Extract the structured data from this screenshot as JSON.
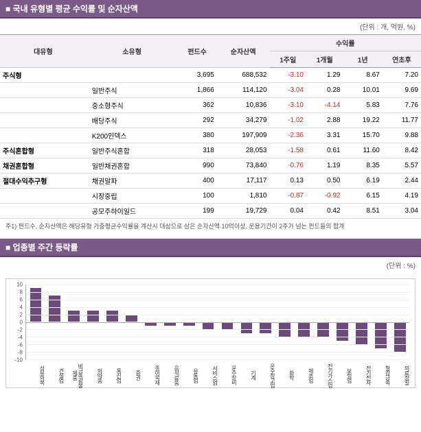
{
  "section1": {
    "title": "■ 국내 유형별 평균 수익률 및 순자산액",
    "unit": "(단위 : 개, 억원, %)",
    "headers": {
      "cat": "대유형",
      "sub": "소유형",
      "funds": "펀드수",
      "nav": "순자산액",
      "ret_group": "수익률",
      "w1": "1주일",
      "m1": "1개월",
      "y1": "1년",
      "ytd": "연초후"
    },
    "rows": [
      {
        "maj": true,
        "cat": "주식형",
        "sub": "",
        "funds": "3,695",
        "nav": "688,532",
        "w1": "-3.10",
        "w1n": true,
        "m1": "1.29",
        "m1n": false,
        "y1": "8.67",
        "ytd": "7.20"
      },
      {
        "maj": false,
        "cat": "",
        "sub": "일반주식",
        "funds": "1,866",
        "nav": "114,120",
        "w1": "-3.04",
        "w1n": true,
        "m1": "0.28",
        "m1n": false,
        "y1": "10.01",
        "ytd": "9.69"
      },
      {
        "maj": false,
        "cat": "",
        "sub": "중소형주식",
        "funds": "362",
        "nav": "10,836",
        "w1": "-3.10",
        "w1n": true,
        "m1": "-4.14",
        "m1n": true,
        "y1": "5.83",
        "ytd": "7.76"
      },
      {
        "maj": false,
        "cat": "",
        "sub": "배당주식",
        "funds": "292",
        "nav": "34,279",
        "w1": "-1.02",
        "w1n": true,
        "m1": "2.88",
        "m1n": false,
        "y1": "19.22",
        "ytd": "11.77"
      },
      {
        "maj": false,
        "cat": "",
        "sub": "K200인덱스",
        "funds": "380",
        "nav": "197,909",
        "w1": "-2.36",
        "w1n": true,
        "m1": "3.31",
        "m1n": false,
        "y1": "15.70",
        "ytd": "9.88"
      },
      {
        "maj": true,
        "cat": "주식혼합형",
        "sub": "일반주식혼합",
        "funds": "318",
        "nav": "28,053",
        "w1": "-1.58",
        "w1n": true,
        "m1": "0.61",
        "m1n": false,
        "y1": "11.60",
        "ytd": "8.42"
      },
      {
        "maj": true,
        "cat": "채권혼합형",
        "sub": "일반채권혼합",
        "funds": "990",
        "nav": "73,840",
        "w1": "-0.76",
        "w1n": true,
        "m1": "1.19",
        "m1n": false,
        "y1": "8.35",
        "ytd": "5.57"
      },
      {
        "maj": true,
        "cat": "절대수익추구형",
        "sub": "채권알파",
        "funds": "400",
        "nav": "17,117",
        "w1": "0.13",
        "w1n": false,
        "m1": "0.50",
        "m1n": false,
        "y1": "6.19",
        "ytd": "2.44"
      },
      {
        "maj": false,
        "cat": "",
        "sub": "시장중립",
        "funds": "100",
        "nav": "1,810",
        "w1": "-0.87",
        "w1n": true,
        "m1": "-0.92",
        "m1n": true,
        "y1": "6.15",
        "ytd": "4.19"
      },
      {
        "maj": false,
        "cat": "",
        "sub": "공모주하이일드",
        "funds": "199",
        "nav": "19,729",
        "w1": "0.04",
        "w1n": false,
        "m1": "0.42",
        "m1n": false,
        "y1": "8.51",
        "ytd": "3.04"
      }
    ],
    "footnote": "주1) 펀드수, 순자산액은 해당유형 가중평균수익률을 계산시 대상으로 삼은 순자산액 10억이상, 운용기간이 2주가 넘는 펀드들의 합계"
  },
  "section2": {
    "title": "■ 업종별 주간 등락률",
    "unit": "(단위 : %)",
    "chart": {
      "type": "bar",
      "ymin": -10,
      "ymax": 10,
      "ytick_step": 2,
      "bar_color": "#6b4b7a",
      "grid_color": "#eeeeee",
      "axis_color": "#aaaaaa",
      "categories": [
        "섬유의복",
        "건설업",
        "비금속광물제품",
        "의약품",
        "통신업",
        "증권",
        "종이목재",
        "음식료품",
        "유통업",
        "서비스업",
        "운수장비",
        "기계",
        "운수창고업",
        "화학",
        "제조업",
        "전기가스업",
        "보험업",
        "전기전자",
        "철강금속",
        "의료정밀"
      ],
      "values": [
        9,
        7,
        3,
        3,
        3,
        2,
        -1,
        -1,
        -1,
        -2,
        -2,
        -3,
        -3,
        -4,
        -4,
        -4,
        -5,
        -6,
        -7,
        -8
      ]
    }
  }
}
